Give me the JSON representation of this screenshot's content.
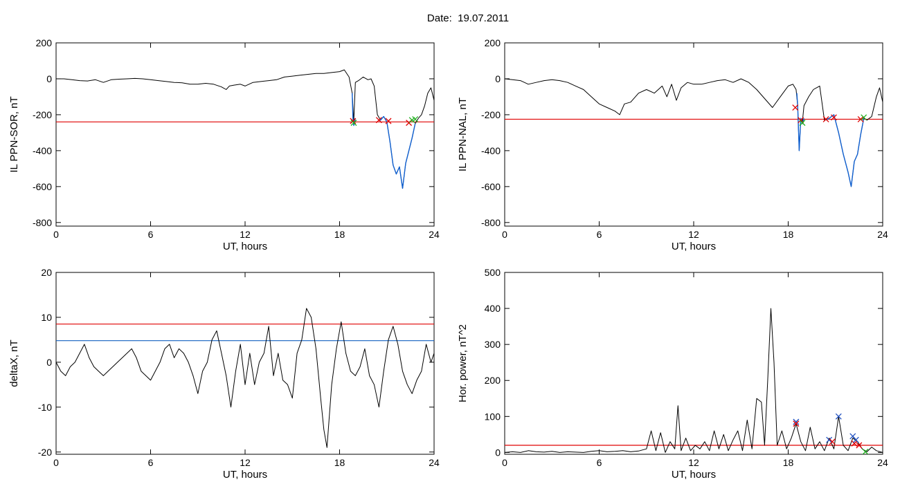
{
  "page": {
    "title": "Date:  19.07.2011"
  },
  "colors": {
    "data": "#000000",
    "threshold_red": "#e00000",
    "threshold_blue": "#1060c0",
    "highlight_blue": "#1060d0",
    "marker_green": "#20b020",
    "marker_blue": "#2050c0"
  },
  "chart_data": [
    {
      "id": "sor",
      "type": "line",
      "title": "",
      "xlabel": "UT, hours",
      "ylabel": "IL PPN-SOR, nT",
      "xlim": [
        0,
        24
      ],
      "ylim": [
        -820,
        200
      ],
      "xticks": [
        0,
        6,
        12,
        18,
        24
      ],
      "xtick_labels": [
        "0",
        "6",
        "12",
        "18",
        "24"
      ],
      "yticks": [
        200,
        0,
        -200,
        -400,
        -600,
        -800
      ],
      "ytick_labels": [
        "200",
        "0",
        "-200",
        "-400",
        "-600",
        "-800"
      ],
      "grid": false,
      "series": [
        {
          "role": "data",
          "color": "#000000",
          "x": [
            0,
            0.5,
            1,
            1.5,
            2,
            2.5,
            3,
            3.5,
            4,
            4.5,
            5,
            5.5,
            6,
            6.5,
            7,
            7.5,
            8,
            8.5,
            9,
            9.5,
            10,
            10.5,
            10.8,
            11,
            11.3,
            11.7,
            12,
            12.5,
            13,
            13.5,
            14,
            14.5,
            15,
            15.5,
            16,
            16.5,
            17,
            17.5,
            18,
            18.3,
            18.6,
            18.8,
            18.9,
            19,
            19.2,
            19.5,
            19.8,
            20,
            20.2,
            20.4,
            20.6,
            20.8,
            21,
            21.2,
            21.4,
            21.6,
            21.8,
            22,
            22.2,
            22.4,
            22.6,
            22.8,
            23,
            23.2,
            23.4,
            23.6,
            23.8,
            24
          ],
          "y": [
            0,
            0,
            -5,
            -10,
            -12,
            -5,
            -20,
            -5,
            -2,
            0,
            2,
            0,
            -5,
            -10,
            -15,
            -20,
            -22,
            -30,
            -30,
            -25,
            -30,
            -45,
            -60,
            -40,
            -35,
            -30,
            -40,
            -20,
            -15,
            -10,
            -5,
            10,
            15,
            20,
            25,
            30,
            30,
            35,
            40,
            50,
            10,
            -80,
            -240,
            -20,
            -10,
            10,
            -5,
            0,
            -40,
            -200,
            -230,
            -210,
            -240,
            -350,
            -480,
            -530,
            -490,
            -610,
            -470,
            -400,
            -330,
            -250,
            -220,
            -200,
            -150,
            -80,
            -50,
            -120
          ]
        },
        {
          "role": "highlight",
          "color": "#1060d0",
          "x": [
            20.5,
            20.6,
            20.8,
            21,
            21.2,
            21.4,
            21.6,
            21.8,
            22,
            22.2,
            22.4,
            22.6,
            22.8
          ],
          "y": [
            -230,
            -230,
            -210,
            -240,
            -350,
            -480,
            -530,
            -490,
            -610,
            -470,
            -400,
            -330,
            -250
          ]
        },
        {
          "role": "highlight",
          "color": "#1060d0",
          "x": [
            18.8,
            18.85,
            18.9,
            18.95,
            19.0
          ],
          "y": [
            -80,
            -220,
            -260,
            -240,
            -220
          ]
        }
      ],
      "thresholds": [
        {
          "y": -240,
          "color": "#e00000"
        }
      ],
      "markers": [
        {
          "x": 18.85,
          "y": -235,
          "color": "#e00000"
        },
        {
          "x": 18.9,
          "y": -245,
          "color": "#20b020"
        },
        {
          "x": 20.5,
          "y": -230,
          "color": "#e00000"
        },
        {
          "x": 21.1,
          "y": -235,
          "color": "#e00000"
        },
        {
          "x": 22.4,
          "y": -245,
          "color": "#e00000"
        },
        {
          "x": 22.6,
          "y": -230,
          "color": "#20b020"
        },
        {
          "x": 22.8,
          "y": -225,
          "color": "#20b020"
        }
      ]
    },
    {
      "id": "nal",
      "type": "line",
      "title": "",
      "xlabel": "UT, hours",
      "ylabel": "IL PPN-NAL, nT",
      "xlim": [
        0,
        24
      ],
      "ylim": [
        -820,
        200
      ],
      "xticks": [
        0,
        6,
        12,
        18,
        24
      ],
      "xtick_labels": [
        "0",
        "6",
        "12",
        "18",
        "24"
      ],
      "yticks": [
        200,
        0,
        -200,
        -400,
        -600,
        -800
      ],
      "ytick_labels": [
        "200",
        "0",
        "-200",
        "-400",
        "-600",
        "-800"
      ],
      "grid": false,
      "series": [
        {
          "role": "data",
          "color": "#000000",
          "x": [
            0,
            0.5,
            1,
            1.5,
            2,
            2.5,
            3,
            3.5,
            4,
            4.5,
            5,
            5.5,
            6,
            6.5,
            7,
            7.3,
            7.6,
            8,
            8.5,
            9,
            9.5,
            10,
            10.3,
            10.6,
            10.9,
            11.2,
            11.6,
            12,
            12.5,
            13,
            13.5,
            14,
            14.5,
            15,
            15.5,
            16,
            16.5,
            17,
            17.5,
            18,
            18.3,
            18.5,
            18.6,
            18.7,
            18.8,
            18.9,
            19,
            19.3,
            19.6,
            20,
            20.3,
            20.6,
            20.9,
            21.2,
            21.5,
            21.8,
            22,
            22.2,
            22.4,
            22.6,
            22.8,
            23,
            23.3,
            23.6,
            23.8,
            24
          ],
          "y": [
            0,
            -5,
            -10,
            -30,
            -20,
            -10,
            -5,
            -10,
            -20,
            -40,
            -60,
            -100,
            -140,
            -160,
            -180,
            -200,
            -140,
            -130,
            -80,
            -60,
            -80,
            -40,
            -100,
            -30,
            -120,
            -50,
            -20,
            -30,
            -30,
            -20,
            -10,
            -5,
            -20,
            0,
            -20,
            -60,
            -110,
            -160,
            -100,
            -40,
            -30,
            -60,
            -150,
            -400,
            -220,
            -240,
            -150,
            -100,
            -60,
            -40,
            -230,
            -220,
            -200,
            -300,
            -420,
            -520,
            -600,
            -460,
            -420,
            -310,
            -220,
            -230,
            -210,
            -100,
            -50,
            -130
          ]
        },
        {
          "role": "highlight",
          "color": "#1060d0",
          "x": [
            18.55,
            18.6,
            18.7,
            18.8,
            18.9,
            19.0
          ],
          "y": [
            -80,
            -150,
            -400,
            -220,
            -250,
            -220
          ]
        },
        {
          "role": "highlight",
          "color": "#1060d0",
          "x": [
            20.4,
            20.6,
            20.9,
            21.2,
            21.5,
            21.8,
            22,
            22.2,
            22.4,
            22.6,
            22.8
          ],
          "y": [
            -230,
            -220,
            -200,
            -300,
            -420,
            -520,
            -600,
            -460,
            -420,
            -310,
            -220
          ]
        }
      ],
      "thresholds": [
        {
          "y": -225,
          "color": "#e00000"
        }
      ],
      "markers": [
        {
          "x": 18.45,
          "y": -160,
          "color": "#e00000"
        },
        {
          "x": 18.8,
          "y": -230,
          "color": "#e00000"
        },
        {
          "x": 18.9,
          "y": -245,
          "color": "#20b020"
        },
        {
          "x": 20.4,
          "y": -225,
          "color": "#e00000"
        },
        {
          "x": 20.9,
          "y": -215,
          "color": "#e00000"
        },
        {
          "x": 22.6,
          "y": -225,
          "color": "#e00000"
        },
        {
          "x": 22.8,
          "y": -215,
          "color": "#20b020"
        }
      ]
    },
    {
      "id": "deltax",
      "type": "line",
      "title": "",
      "xlabel": "UT, hours",
      "ylabel": "deltaX, nT",
      "xlim": [
        0,
        24
      ],
      "ylim": [
        -20.5,
        20
      ],
      "xticks": [
        0,
        6,
        12,
        18,
        24
      ],
      "xtick_labels": [
        "0",
        "6",
        "12",
        "18",
        "24"
      ],
      "yticks": [
        20,
        10,
        0,
        -10,
        -20
      ],
      "ytick_labels": [
        "20",
        "10",
        "0",
        "-10",
        "-20"
      ],
      "grid": false,
      "series": [
        {
          "role": "data",
          "color": "#000000",
          "x": [
            0,
            0.3,
            0.6,
            0.9,
            1.2,
            1.5,
            1.8,
            2.1,
            2.4,
            2.7,
            3.0,
            3.3,
            3.6,
            3.9,
            4.2,
            4.5,
            4.8,
            5.1,
            5.4,
            5.7,
            6.0,
            6.3,
            6.6,
            6.9,
            7.2,
            7.5,
            7.8,
            8.1,
            8.4,
            8.7,
            9.0,
            9.3,
            9.6,
            9.9,
            10.2,
            10.5,
            10.8,
            11.1,
            11.4,
            11.7,
            12.0,
            12.3,
            12.6,
            12.9,
            13.2,
            13.5,
            13.8,
            14.1,
            14.4,
            14.7,
            15.0,
            15.3,
            15.6,
            15.9,
            16.2,
            16.5,
            16.8,
            17.0,
            17.2,
            17.5,
            17.8,
            18.1,
            18.4,
            18.7,
            19.0,
            19.3,
            19.6,
            19.9,
            20.2,
            20.5,
            20.8,
            21.1,
            21.4,
            21.7,
            22.0,
            22.3,
            22.6,
            22.9,
            23.2,
            23.5,
            23.8,
            24.0
          ],
          "y": [
            0,
            -2,
            -3,
            -1,
            0,
            2,
            4,
            1,
            -1,
            -2,
            -3,
            -2,
            -1,
            0,
            1,
            2,
            3,
            1,
            -2,
            -3,
            -4,
            -2,
            0,
            3,
            4,
            1,
            3,
            2,
            0,
            -3,
            -7,
            -2,
            0,
            5,
            7,
            2,
            -3,
            -10,
            -2,
            4,
            -5,
            2,
            -5,
            0,
            2,
            8,
            -3,
            2,
            -4,
            -5,
            -8,
            2,
            5,
            12,
            10,
            3,
            -8,
            -15,
            -19,
            -5,
            3,
            9,
            2,
            -2,
            -3,
            -1,
            3,
            -3,
            -5,
            -10,
            -2,
            5,
            8,
            4,
            -2,
            -5,
            -7,
            -4,
            -2,
            4,
            0,
            2
          ]
        }
      ],
      "thresholds": [
        {
          "y": 8.5,
          "color": "#e00000"
        },
        {
          "y": 4.8,
          "color": "#1060c0"
        }
      ],
      "markers": []
    },
    {
      "id": "power",
      "type": "line",
      "title": "",
      "xlabel": "UT, hours",
      "ylabel": "Hor. power, nT^2",
      "xlim": [
        0,
        24
      ],
      "ylim": [
        -5,
        500
      ],
      "xticks": [
        0,
        6,
        12,
        18,
        24
      ],
      "xtick_labels": [
        "0",
        "6",
        "12",
        "18",
        "24"
      ],
      "yticks": [
        500,
        400,
        300,
        200,
        100,
        0
      ],
      "ytick_labels": [
        "500",
        "400",
        "300",
        "200",
        "100",
        "0"
      ],
      "grid": false,
      "series": [
        {
          "role": "data",
          "color": "#000000",
          "x": [
            0,
            0.5,
            1,
            1.5,
            2,
            2.5,
            3,
            3.5,
            4,
            4.5,
            5,
            5.5,
            6,
            6.5,
            7,
            7.5,
            8,
            8.5,
            9,
            9.3,
            9.6,
            9.9,
            10.2,
            10.5,
            10.8,
            11.0,
            11.2,
            11.5,
            11.8,
            12.1,
            12.4,
            12.7,
            13.0,
            13.3,
            13.6,
            13.9,
            14.2,
            14.5,
            14.8,
            15.1,
            15.4,
            15.7,
            16.0,
            16.3,
            16.5,
            16.7,
            16.9,
            17.1,
            17.3,
            17.6,
            17.9,
            18.2,
            18.5,
            18.8,
            19.1,
            19.4,
            19.7,
            20.0,
            20.3,
            20.6,
            20.9,
            21.2,
            21.5,
            21.8,
            22.1,
            22.4,
            22.7,
            23.0,
            23.3,
            23.6,
            24
          ],
          "y": [
            0,
            2,
            0,
            5,
            2,
            1,
            3,
            0,
            2,
            1,
            0,
            3,
            5,
            2,
            3,
            5,
            2,
            4,
            10,
            60,
            5,
            55,
            0,
            30,
            10,
            130,
            5,
            40,
            5,
            20,
            10,
            30,
            5,
            60,
            10,
            50,
            5,
            35,
            60,
            5,
            90,
            10,
            150,
            140,
            20,
            200,
            400,
            250,
            20,
            60,
            10,
            40,
            80,
            30,
            5,
            70,
            10,
            30,
            5,
            40,
            10,
            100,
            20,
            5,
            40,
            30,
            10,
            2,
            15,
            5,
            0
          ]
        }
      ],
      "thresholds": [
        {
          "y": 20,
          "color": "#e00000"
        }
      ],
      "markers": [
        {
          "x": 18.5,
          "y": 85,
          "color": "#2050c0"
        },
        {
          "x": 18.5,
          "y": 80,
          "color": "#e00000"
        },
        {
          "x": 20.6,
          "y": 35,
          "color": "#2050c0"
        },
        {
          "x": 20.8,
          "y": 30,
          "color": "#e00000"
        },
        {
          "x": 21.2,
          "y": 100,
          "color": "#2050c0"
        },
        {
          "x": 22.1,
          "y": 45,
          "color": "#2050c0"
        },
        {
          "x": 22.2,
          "y": 25,
          "color": "#e00000"
        },
        {
          "x": 22.3,
          "y": 35,
          "color": "#2050c0"
        },
        {
          "x": 22.5,
          "y": 20,
          "color": "#e00000"
        },
        {
          "x": 22.9,
          "y": 2,
          "color": "#20b020"
        }
      ]
    }
  ]
}
